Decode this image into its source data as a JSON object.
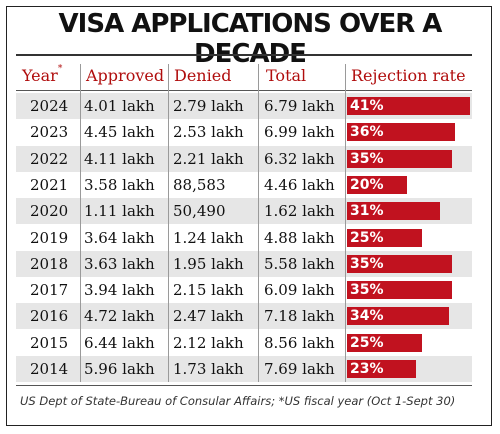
{
  "chart_data": {
    "type": "table",
    "title": "VISA APPLICATIONS OVER A DECADE",
    "columns": [
      "Year",
      "Approved",
      "Denied",
      "Total",
      "Rejection rate"
    ],
    "year_footnote_mark": "*",
    "rows": [
      {
        "year": "2024",
        "approved": "4.01 lakh",
        "denied": "2.79 lakh",
        "total": "6.79 lakh",
        "rate_label": "41%",
        "rate": 41
      },
      {
        "year": "2023",
        "approved": "4.45 lakh",
        "denied": "2.53 lakh",
        "total": "6.99 lakh",
        "rate_label": "36%",
        "rate": 36
      },
      {
        "year": "2022",
        "approved": "4.11 lakh",
        "denied": "2.21 lakh",
        "total": "6.32 lakh",
        "rate_label": "35%",
        "rate": 35
      },
      {
        "year": "2021",
        "approved": "3.58 lakh",
        "denied": "88,583",
        "total": "4.46 lakh",
        "rate_label": "20%",
        "rate": 20
      },
      {
        "year": "2020",
        "approved": "1.11 lakh",
        "denied": "50,490",
        "total": "1.62 lakh",
        "rate_label": "31%",
        "rate": 31
      },
      {
        "year": "2019",
        "approved": "3.64 lakh",
        "denied": "1.24 lakh",
        "total": "4.88 lakh",
        "rate_label": "25%",
        "rate": 25
      },
      {
        "year": "2018",
        "approved": "3.63 lakh",
        "denied": "1.95 lakh",
        "total": "5.58 lakh",
        "rate_label": "35%",
        "rate": 35
      },
      {
        "year": "2017",
        "approved": "3.94 lakh",
        "denied": "2.15 lakh",
        "total": "6.09 lakh",
        "rate_label": "35%",
        "rate": 35
      },
      {
        "year": "2016",
        "approved": "4.72 lakh",
        "denied": "2.47 lakh",
        "total": "7.18 lakh",
        "rate_label": "34%",
        "rate": 34
      },
      {
        "year": "2015",
        "approved": "6.44 lakh",
        "denied": "2.12 lakh",
        "total": "8.56 lakh",
        "rate_label": "25%",
        "rate": 25
      },
      {
        "year": "2014",
        "approved": "5.96 lakh",
        "denied": "1.73 lakh",
        "total": "7.69 lakh",
        "rate_label": "23%",
        "rate": 23
      }
    ],
    "bar_color": "#c1121f",
    "header_color": "#b00d0d",
    "source": "US Dept of State-Bureau of Consular Affairs; *US fiscal year (Oct 1-Sept 30)"
  }
}
